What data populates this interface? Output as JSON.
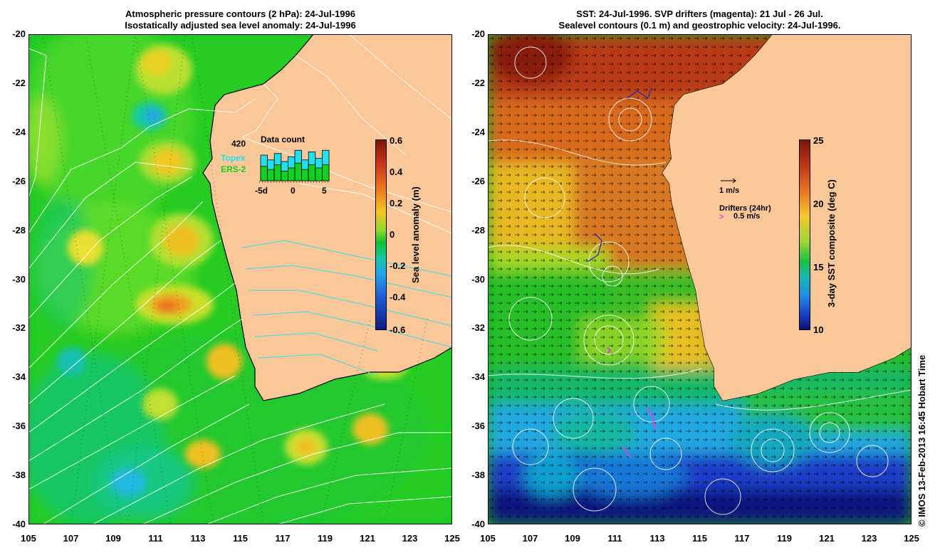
{
  "left": {
    "title_line1": "Atmospheric pressure contours (2 hPa): 24-Jul-1996",
    "title_line2": "Isostatically adjusted sea level anomaly: 24-Jul-1996",
    "colorbar_label": "Sea level anomaly (m)",
    "colorbar_ticks": [
      "0.6",
      "0.4",
      "0.2",
      "0",
      "-0.2",
      "-0.4",
      "-0.6"
    ],
    "inset": {
      "count_label": "420",
      "title": "Data count",
      "series_topex": "Topex",
      "series_ers2": "ERS-2",
      "x_ticks": [
        "-5d",
        "0",
        "5"
      ],
      "bars_total": [
        0.8,
        0.65,
        0.85,
        0.6,
        0.75,
        0.95,
        0.65,
        0.9,
        0.7,
        0.95
      ],
      "bars_ers2": [
        0.45,
        0.35,
        0.5,
        0.3,
        0.4,
        0.55,
        0.35,
        0.5,
        0.4,
        0.5
      ],
      "colors": {
        "topex": "#20e0f0",
        "ers2": "#10d020"
      }
    }
  },
  "right": {
    "title_line1": "SST: 24-Jul-1996. SVP drifters (magenta): 21 Jul - 26 Jul.",
    "title_line2": "Sealevel contours (0.1 m) and geostrophic velocity: 24-Jul-1996.",
    "colorbar_label": "3-day SST composite (deg C)",
    "colorbar_ticks": [
      "25",
      "20",
      "15",
      "10"
    ],
    "velocity_key": "1 m/s",
    "drifters_label": "Drifters (24hr)",
    "drifters_speed": "0.5 m/s"
  },
  "axes": {
    "x_ticks": [
      "105",
      "107",
      "109",
      "111",
      "113",
      "115",
      "117",
      "119",
      "121",
      "123",
      "125"
    ],
    "y_ticks": [
      "-20",
      "-22",
      "-24",
      "-26",
      "-28",
      "-30",
      "-32",
      "-34",
      "-36",
      "-38",
      "-40"
    ]
  },
  "credit": "© IMOS 13-Feb-2013 16:45 Hobart Time",
  "colors": {
    "land": "#f9c798",
    "coast": "#000000",
    "pressure_contour": "#ffffff",
    "pressure_contour_over_land": "#30e0f0",
    "drifter": "#e040e0"
  }
}
